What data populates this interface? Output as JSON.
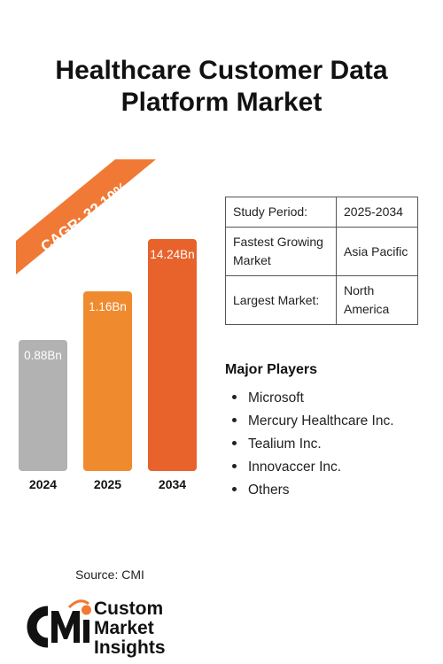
{
  "title_line1": "Healthcare Customer Data",
  "title_line2": "Platform Market",
  "chart_data": {
    "type": "bar",
    "categories": [
      "2024",
      "2025",
      "2034"
    ],
    "values": [
      0.88,
      1.16,
      14.24
    ],
    "value_labels": [
      "0.88Bn",
      "1.16Bn",
      "14.24Bn"
    ],
    "unit": "Bn",
    "bar_colors": [
      "#b2b2b2",
      "#f08a2e",
      "#e8622b"
    ],
    "cagr_label": "CAGR: 32.10%",
    "cagr_color": "#f07a35"
  },
  "info_table": [
    {
      "key": "Study Period:",
      "value": "2025-2034"
    },
    {
      "key": "Fastest Growing Market",
      "value": "Asia Pacific"
    },
    {
      "key": "Largest Market:",
      "value": "North America"
    }
  ],
  "players_title": "Major Players",
  "players": [
    "Microsoft",
    "Mercury Healthcare Inc.",
    "Tealium Inc.",
    "Innovaccer Inc.",
    "Others"
  ],
  "source": "Source: CMI",
  "logo": {
    "mark": "CMI",
    "line1": "Custom",
    "line2": "Market",
    "line3": "Insights",
    "accent": "#f07a35"
  }
}
